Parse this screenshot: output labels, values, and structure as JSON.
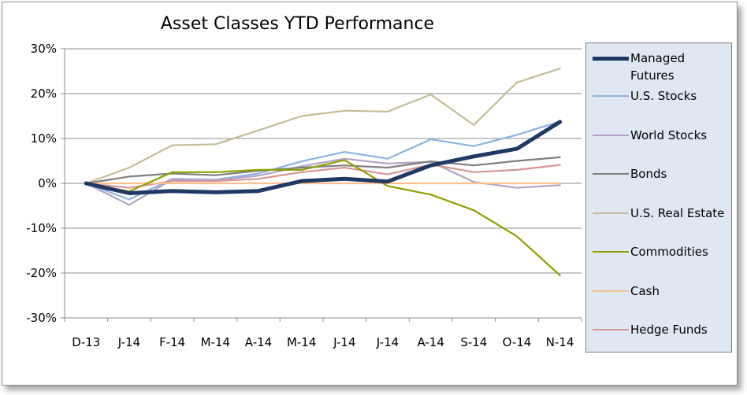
{
  "chart_data": {
    "type": "line",
    "title": "Asset Classes YTD Performance",
    "xlabel": "",
    "ylabel": "",
    "categories": [
      "D-13",
      "J-14",
      "F-14",
      "M-14",
      "A-14",
      "M-14",
      "J-14",
      "J-14",
      "A-14",
      "S-14",
      "O-14",
      "N-14"
    ],
    "y_ticks": [
      "30%",
      "20%",
      "10%",
      "0%",
      "-10%",
      "-20%",
      "-30%"
    ],
    "ylim": [
      -30,
      30
    ],
    "grid": true,
    "legend_position": "right",
    "series": [
      {
        "name": "Managed Futures",
        "color": "#1f3864",
        "width": 5,
        "values": [
          0,
          -2.2,
          -1.7,
          -2.0,
          -1.7,
          0.5,
          1.0,
          0.4,
          4.0,
          6.0,
          7.7,
          13.7
        ]
      },
      {
        "name": "U.S. Stocks",
        "color": "#8db3e2",
        "width": 2.2,
        "values": [
          0,
          -3.6,
          1.0,
          0.8,
          2.2,
          4.9,
          7.0,
          5.5,
          9.8,
          8.3,
          10.8,
          13.8
        ]
      },
      {
        "name": "World Stocks",
        "color": "#b3a2c7",
        "width": 2.2,
        "values": [
          0,
          -4.8,
          0.9,
          0.7,
          1.7,
          3.8,
          5.5,
          4.4,
          4.8,
          0.3,
          -1.0,
          -0.4
        ]
      },
      {
        "name": "Bonds",
        "color": "#7f7f7f",
        "width": 2.2,
        "values": [
          0,
          1.5,
          2.2,
          1.8,
          2.8,
          3.5,
          4.0,
          3.5,
          4.9,
          4.0,
          5.0,
          5.8
        ]
      },
      {
        "name": "U.S. Real Estate",
        "color": "#c4bd97",
        "width": 2.2,
        "values": [
          0,
          3.5,
          8.5,
          8.7,
          11.8,
          15.0,
          16.2,
          16.0,
          19.8,
          13.0,
          22.5,
          25.6
        ]
      },
      {
        "name": "Commodities",
        "color": "#8ea100",
        "width": 2.2,
        "values": [
          0,
          -1.8,
          2.5,
          2.5,
          3.0,
          3.0,
          5.2,
          -0.6,
          -2.5,
          -6.0,
          -11.8,
          -20.5
        ]
      },
      {
        "name": "Cash",
        "color": "#fac090",
        "width": 2.2,
        "values": [
          0,
          0,
          0,
          0,
          0,
          0,
          0,
          0,
          0,
          0,
          0,
          0
        ]
      },
      {
        "name": "Hedge Funds",
        "color": "#d99694",
        "width": 2.2,
        "values": [
          0,
          -1.0,
          0.5,
          0.5,
          1.0,
          2.5,
          3.5,
          2.0,
          4.2,
          2.5,
          3.0,
          4.1
        ]
      }
    ]
  }
}
